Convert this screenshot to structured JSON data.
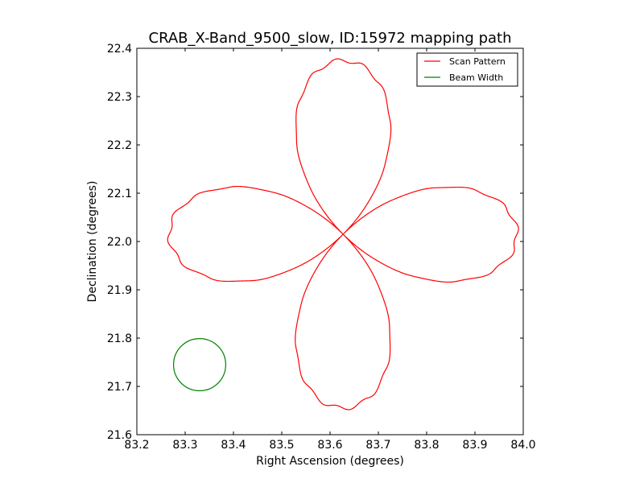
{
  "chart_data": {
    "type": "line",
    "title": "CRAB_X-Band_9500_slow, ID:15972 mapping path",
    "xlabel": "Right Ascension (degrees)",
    "ylabel": "Declination (degrees)",
    "xlim": [
      83.2,
      84.0
    ],
    "ylim": [
      21.6,
      22.4
    ],
    "xticks": [
      "83.2",
      "83.3",
      "83.4",
      "83.5",
      "83.6",
      "83.7",
      "83.8",
      "83.9",
      "84.0"
    ],
    "yticks": [
      "21.6",
      "21.7",
      "21.8",
      "21.9",
      "22.0",
      "22.1",
      "22.2",
      "22.3",
      "22.4"
    ],
    "grid": false,
    "legend_position": "top-right",
    "series": [
      {
        "name": "Scan Pattern",
        "color": "#ff0000",
        "shape": "four-petal rose",
        "center": [
          83.627,
          22.015
        ],
        "petal_length": 0.36,
        "petal_half_width": 0.095,
        "sample_points": [
          {
            "x": 83.627,
            "y": 22.015
          },
          {
            "x": 83.627,
            "y": 22.35
          },
          {
            "x": 83.985,
            "y": 22.01
          },
          {
            "x": 83.627,
            "y": 21.68
          },
          {
            "x": 83.265,
            "y": 22.015
          }
        ]
      },
      {
        "name": "Beam Width",
        "color": "#008000",
        "shape": "circle",
        "center": [
          83.33,
          21.745
        ],
        "radius": 0.054
      }
    ]
  }
}
